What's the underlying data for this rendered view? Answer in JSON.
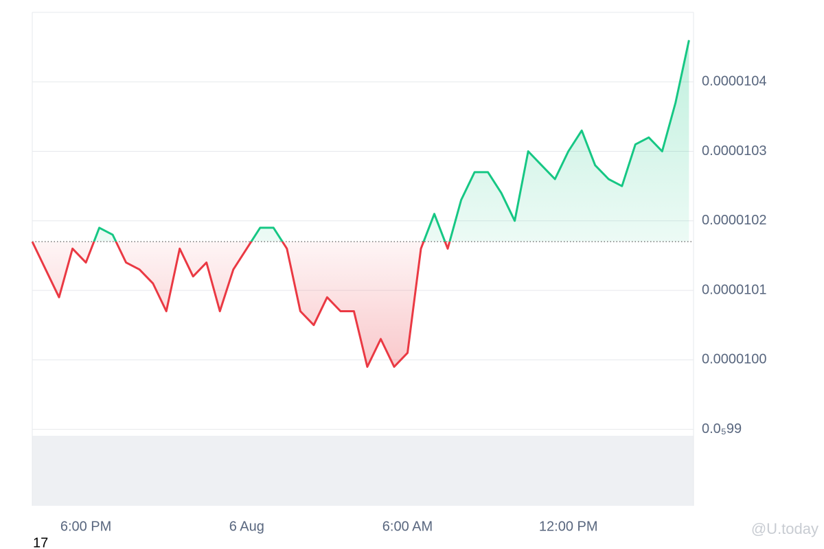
{
  "chart_data": {
    "type": "line",
    "x": [
      -8,
      -7.5,
      -7,
      -6.5,
      -6,
      -5.5,
      -5,
      -4.5,
      -4,
      -3.5,
      -3,
      -2.5,
      -2,
      -1.5,
      -1,
      -0.5,
      0,
      0.5,
      1,
      1.5,
      2,
      2.5,
      3,
      3.5,
      4,
      4.5,
      5,
      5.5,
      6,
      6.5,
      7,
      7.5,
      8,
      8.5,
      9,
      9.5,
      10,
      10.5,
      11,
      11.5,
      12,
      12.5,
      13,
      13.5,
      14,
      14.5,
      15,
      15.5,
      16,
      16.5
    ],
    "values": [
      1.017e-05,
      1.013e-05,
      1.009e-05,
      1.016e-05,
      1.014e-05,
      1.019e-05,
      1.018e-05,
      1.014e-05,
      1.013e-05,
      1.011e-05,
      1.007e-05,
      1.016e-05,
      1.012e-05,
      1.014e-05,
      1.007e-05,
      1.013e-05,
      1.016e-05,
      1.019e-05,
      1.019e-05,
      1.016e-05,
      1.007e-05,
      1.005e-05,
      1.009e-05,
      1.007e-05,
      1.007e-05,
      9.99e-06,
      1.003e-05,
      9.99e-06,
      1.001e-05,
      1.016e-05,
      1.021e-05,
      1.016e-05,
      1.023e-05,
      1.027e-05,
      1.027e-05,
      1.024e-05,
      1.02e-05,
      1.03e-05,
      1.028e-05,
      1.026e-05,
      1.03e-05,
      1.033e-05,
      1.028e-05,
      1.026e-05,
      1.025e-05,
      1.031e-05,
      1.032e-05,
      1.03e-05,
      1.037e-05,
      1.046e-05
    ],
    "baseline": 1.017e-05,
    "up_color": "#16c784",
    "down_color": "#ea3943",
    "xlim": [
      -8,
      16.67
    ],
    "xticks": [
      {
        "value": -6,
        "label": "6:00 PM"
      },
      {
        "value": 0,
        "label": "6 Aug"
      },
      {
        "value": 6,
        "label": "6:00 AM"
      },
      {
        "value": 12,
        "label": "12:00 PM"
      }
    ],
    "ylim": [
      9.79e-06,
      1.05e-05
    ],
    "yticks": [
      {
        "value": 9.9e-06,
        "label": "0.0₅99"
      },
      {
        "value": 1e-05,
        "label": "0.0000100"
      },
      {
        "value": 1.01e-05,
        "label": "0.0000101"
      },
      {
        "value": 1.02e-05,
        "label": "0.0000102"
      },
      {
        "value": 1.03e-05,
        "label": "0.0000103"
      },
      {
        "value": 1.04e-05,
        "label": "0.0000104"
      }
    ],
    "grid": true,
    "corner_text": "17",
    "watermark": "@U.today"
  }
}
